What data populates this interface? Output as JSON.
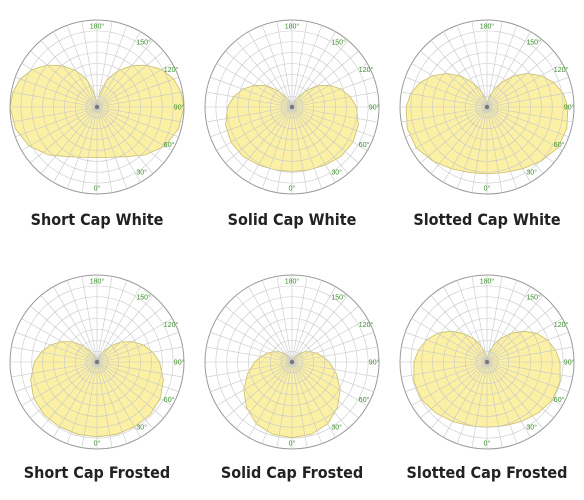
{
  "colors": {
    "fill": "#fbf0a4",
    "fill_stroke": "#c8bd6a",
    "grid": "#c8c8c8",
    "grid_outer": "#9a9a9a",
    "tick_label": "#3a8a2a",
    "center": "#777777"
  },
  "chart_data": [
    {
      "type": "polar",
      "title": "Short Cap White",
      "angle_ticks": [
        "180°",
        "150°",
        "120°",
        "90°",
        "60°",
        "30°",
        "0°"
      ],
      "series": [
        {
          "theta_deg": [
            0,
            15,
            30,
            45,
            60,
            75,
            90,
            100,
            110,
            120,
            130,
            140,
            150,
            155,
            160,
            165,
            170,
            175,
            180
          ],
          "r": [
            0.58,
            0.6,
            0.66,
            0.78,
            0.9,
            0.97,
            1.0,
            0.98,
            0.94,
            0.86,
            0.75,
            0.62,
            0.48,
            0.4,
            0.32,
            0.22,
            0.12,
            0.04,
            0.0
          ]
        }
      ]
    },
    {
      "type": "polar",
      "title": "Solid Cap White",
      "angle_ticks": [
        "180°",
        "150°",
        "120°",
        "90°",
        "60°",
        "30°",
        "0°"
      ],
      "series": [
        {
          "theta_deg": [
            0,
            15,
            30,
            45,
            60,
            75,
            90,
            100,
            110,
            120,
            130,
            140,
            150,
            160,
            170,
            180
          ],
          "r": [
            0.74,
            0.75,
            0.77,
            0.8,
            0.81,
            0.79,
            0.74,
            0.68,
            0.6,
            0.5,
            0.38,
            0.24,
            0.12,
            0.05,
            0.01,
            0.0
          ]
        }
      ]
    },
    {
      "type": "polar",
      "title": "Slotted Cap White",
      "angle_ticks": [
        "180°",
        "150°",
        "120°",
        "90°",
        "60°",
        "30°",
        "0°"
      ],
      "series": [
        {
          "theta_deg": [
            0,
            15,
            30,
            45,
            60,
            75,
            90,
            100,
            110,
            120,
            130,
            140,
            150,
            155,
            160,
            165,
            170,
            175,
            180
          ],
          "r": [
            0.77,
            0.78,
            0.82,
            0.88,
            0.94,
            0.95,
            0.93,
            0.89,
            0.82,
            0.72,
            0.6,
            0.46,
            0.32,
            0.25,
            0.19,
            0.13,
            0.08,
            0.05,
            0.04
          ]
        }
      ]
    },
    {
      "type": "polar",
      "title": "Short Cap Frosted",
      "angle_ticks": [
        "180°",
        "150°",
        "120°",
        "90°",
        "60°",
        "30°",
        "0°"
      ],
      "series": [
        {
          "theta_deg": [
            0,
            15,
            30,
            45,
            60,
            75,
            90,
            100,
            110,
            120,
            130,
            140,
            150,
            160,
            170,
            180
          ],
          "r": [
            0.86,
            0.86,
            0.86,
            0.86,
            0.84,
            0.79,
            0.72,
            0.65,
            0.57,
            0.47,
            0.36,
            0.24,
            0.13,
            0.06,
            0.02,
            0.0
          ]
        }
      ]
    },
    {
      "type": "polar",
      "title": "Solid Cap Frosted",
      "angle_ticks": [
        "180°",
        "150°",
        "120°",
        "90°",
        "60°",
        "30°",
        "0°"
      ],
      "series": [
        {
          "theta_deg": [
            0,
            15,
            30,
            45,
            60,
            75,
            90,
            100,
            110,
            120,
            130,
            140,
            150,
            160,
            170,
            180
          ],
          "r": [
            0.87,
            0.86,
            0.82,
            0.74,
            0.64,
            0.53,
            0.43,
            0.36,
            0.3,
            0.24,
            0.18,
            0.12,
            0.07,
            0.03,
            0.01,
            0.0
          ]
        }
      ]
    },
    {
      "type": "polar",
      "title": "Slotted Cap Frosted",
      "angle_ticks": [
        "180°",
        "150°",
        "120°",
        "90°",
        "60°",
        "30°",
        "0°"
      ],
      "series": [
        {
          "theta_deg": [
            0,
            15,
            30,
            45,
            60,
            75,
            90,
            100,
            110,
            120,
            130,
            140,
            150,
            155,
            160,
            165,
            170,
            175,
            180
          ],
          "r": [
            0.75,
            0.76,
            0.79,
            0.83,
            0.87,
            0.87,
            0.84,
            0.8,
            0.74,
            0.66,
            0.55,
            0.43,
            0.31,
            0.25,
            0.19,
            0.13,
            0.08,
            0.05,
            0.04
          ]
        }
      ]
    }
  ]
}
